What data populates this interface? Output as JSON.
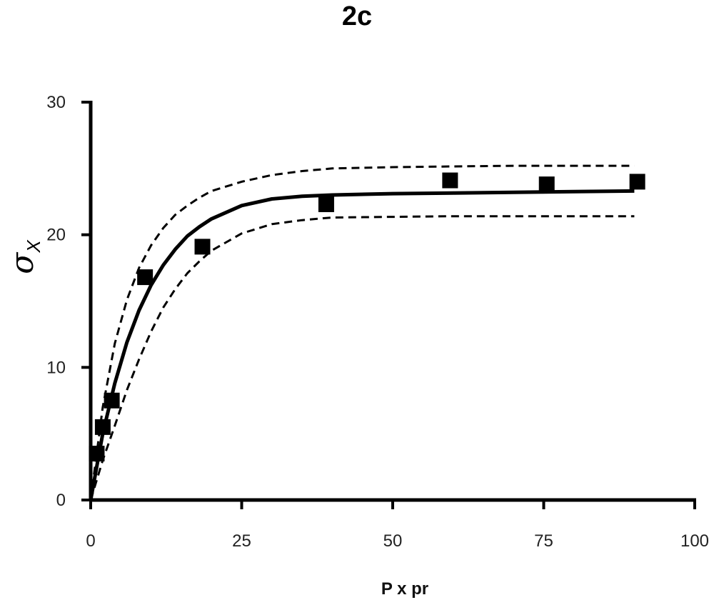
{
  "chart_data": {
    "type": "scatter",
    "title": "2c",
    "xlabel": "P x pr",
    "ylabel": "σ",
    "ylabel_subscript": "X",
    "xlim": [
      0,
      100
    ],
    "ylim": [
      0,
      30
    ],
    "xticks": [
      "0",
      "25",
      "50",
      "75",
      "100"
    ],
    "yticks": [
      "0",
      "10",
      "20",
      "30"
    ],
    "grid": false,
    "series": [
      {
        "kind": "points",
        "marker": "square",
        "x": [
          1,
          2,
          3.5,
          9,
          18.5,
          39,
          59.5,
          75.5,
          90.5
        ],
        "y": [
          3.5,
          5.5,
          7.5,
          16.8,
          19.1,
          22.3,
          24.1,
          23.8,
          24.0
        ]
      },
      {
        "kind": "fit",
        "line": "solid",
        "x": [
          0,
          2,
          4,
          6,
          8,
          10,
          12,
          14,
          16,
          18,
          20,
          25,
          30,
          35,
          40,
          50,
          60,
          70,
          80,
          90
        ],
        "y": [
          0,
          5.0,
          8.8,
          11.9,
          14.3,
          16.2,
          17.7,
          18.9,
          19.9,
          20.6,
          21.2,
          22.2,
          22.7,
          22.9,
          23.0,
          23.1,
          23.15,
          23.2,
          23.25,
          23.3
        ]
      },
      {
        "kind": "upper-bound",
        "line": "dashed",
        "x": [
          0,
          2,
          4,
          6,
          8,
          10,
          12,
          14,
          16,
          18,
          20,
          25,
          30,
          35,
          40,
          50,
          60,
          70,
          80,
          90
        ],
        "y": [
          0,
          7.0,
          11.8,
          15.1,
          17.5,
          19.2,
          20.5,
          21.5,
          22.2,
          22.8,
          23.3,
          24.0,
          24.5,
          24.8,
          25.0,
          25.1,
          25.15,
          25.2,
          25.2,
          25.2
        ]
      },
      {
        "kind": "lower-bound",
        "line": "dashed",
        "x": [
          0,
          2,
          4,
          6,
          8,
          10,
          12,
          14,
          16,
          18,
          20,
          25,
          30,
          35,
          40,
          50,
          60,
          70,
          80,
          90
        ],
        "y": [
          0,
          3.0,
          5.6,
          8.3,
          10.6,
          12.7,
          14.5,
          15.9,
          17.1,
          18.0,
          18.8,
          20.1,
          20.8,
          21.1,
          21.3,
          21.35,
          21.4,
          21.4,
          21.4,
          21.4
        ]
      }
    ]
  }
}
